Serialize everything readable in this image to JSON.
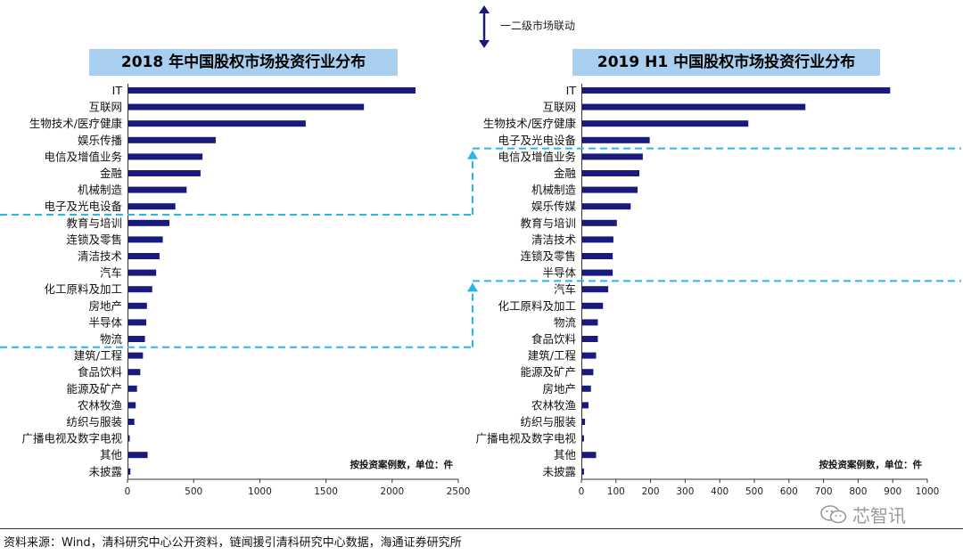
{
  "top_legend": {
    "label": "一二级市场联动"
  },
  "chart_data": [
    {
      "type": "bar",
      "orientation": "horizontal",
      "title": "2018 年中国股权市场投资行业分布",
      "note": "按投资案例数，单位：件",
      "categories": [
        "IT",
        "互联网",
        "生物技术/医疗健康",
        "娱乐传播",
        "电信及增值业务",
        "金融",
        "机械制造",
        "电子及光电设备",
        "教育与培训",
        "连锁及零售",
        "清洁技术",
        "汽车",
        "化工原料及加工",
        "房地产",
        "半导体",
        "物流",
        "建筑/工程",
        "食品饮料",
        "能源及矿产",
        "农林牧渔",
        "纺织与服装",
        "广播电视及数字电视",
        "其他",
        "未披露"
      ],
      "values": [
        2170,
        1780,
        1340,
        660,
        560,
        545,
        440,
        355,
        310,
        260,
        235,
        210,
        180,
        140,
        135,
        125,
        110,
        90,
        65,
        55,
        45,
        5,
        145,
        15
      ],
      "xlim": [
        0,
        2500
      ],
      "xticks": [
        "0",
        "500",
        "1000",
        "1500",
        "2000",
        "2500"
      ],
      "bar_color": "#1a1a7e"
    },
    {
      "type": "bar",
      "orientation": "horizontal",
      "title": "2019 H1 中国股权市场投资行业分布",
      "note": "按投资案例数，单位：件",
      "categories": [
        "IT",
        "互联网",
        "生物技术/医疗健康",
        "电子及光电设备",
        "电信及增值业务",
        "金融",
        "机械制造",
        "娱乐传媒",
        "教育与培训",
        "清洁技术",
        "连锁及零售",
        "半导体",
        "汽车",
        "化工原料及加工",
        "物流",
        "食品饮料",
        "建筑/工程",
        "能源及矿产",
        "房地产",
        "农林牧渔",
        "纺织与服装",
        "广播电视及数字电视",
        "其他",
        "未披露"
      ],
      "values": [
        890,
        645,
        480,
        195,
        175,
        165,
        160,
        140,
        100,
        90,
        88,
        88,
        75,
        60,
        45,
        45,
        40,
        32,
        25,
        18,
        8,
        5,
        40,
        5
      ],
      "xlim": [
        0,
        1000
      ],
      "xticks": [
        "0",
        "100",
        "200",
        "300",
        "400",
        "500",
        "600",
        "700",
        "800",
        "900",
        "1000"
      ],
      "bar_color": "#1a1a7e"
    }
  ],
  "source": "资料来源：Wind，清科研究中心公开资料，链闻援引清科研究中心数据，海通证券研究所",
  "watermark": "芯智讯",
  "colors": {
    "bar": "#1a1a7e",
    "dashed": "#29b6e8",
    "title_bg": "#a9cff0"
  }
}
